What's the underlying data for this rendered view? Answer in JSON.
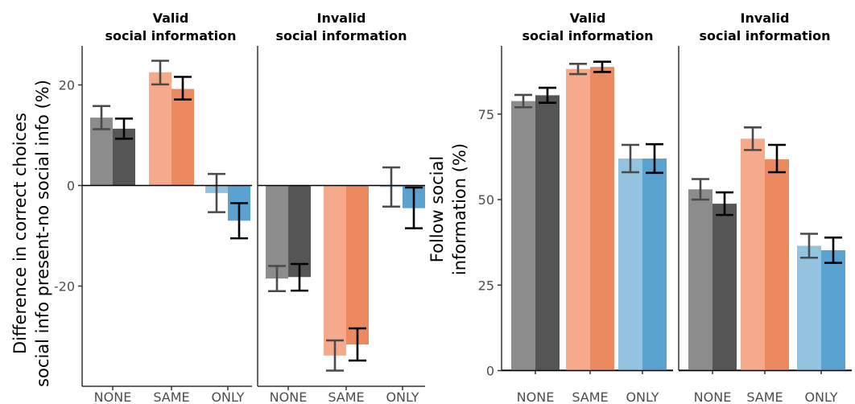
{
  "chart_data": [
    {
      "type": "bar",
      "ylabel_lines": [
        "Difference in correct choices",
        "social info present-no social info (%)"
      ],
      "ylim": [
        -40,
        28
      ],
      "yticks": [
        -20,
        0,
        20
      ],
      "ytick_labels": [
        "-20",
        "0",
        "20"
      ],
      "categories": [
        "NONE",
        "SAME",
        "ONLY"
      ],
      "grid": false,
      "legend": "none",
      "panels": [
        {
          "title_lines": [
            "Valid",
            "social information"
          ],
          "bars": [
            {
              "category": "NONE",
              "values": [
                13.5,
                11.3
              ],
              "errors": [
                [
                  11.2,
                  15.8
                ],
                [
                  9.3,
                  13.3
                ]
              ]
            },
            {
              "category": "SAME",
              "values": [
                22.5,
                19.2
              ],
              "errors": [
                [
                  20.1,
                  24.8
                ],
                [
                  17.1,
                  21.6
                ]
              ]
            },
            {
              "category": "ONLY",
              "values": [
                -1.5,
                -7.0
              ],
              "errors": [
                [
                  -5.3,
                  2.3
                ],
                [
                  -10.5,
                  -3.5
                ]
              ]
            }
          ]
        },
        {
          "title_lines": [
            "Invalid",
            "social information"
          ],
          "bars": [
            {
              "category": "NONE",
              "values": [
                -18.5,
                -18.2
              ],
              "errors": [
                [
                  -21.0,
                  -16.0
                ],
                [
                  -20.9,
                  -15.6
                ]
              ]
            },
            {
              "category": "SAME",
              "values": [
                -33.8,
                -31.6
              ],
              "errors": [
                [
                  -36.8,
                  -30.8
                ],
                [
                  -34.8,
                  -28.4
                ]
              ]
            },
            {
              "category": "ONLY",
              "values": [
                -0.3,
                -4.5
              ],
              "errors": [
                [
                  -4.2,
                  3.6
                ],
                [
                  -8.5,
                  -0.4
                ]
              ]
            }
          ]
        }
      ]
    },
    {
      "type": "bar",
      "ylabel_lines": [
        "Follow social",
        "information (%)"
      ],
      "ylim": [
        0,
        95
      ],
      "yticks": [
        0,
        25,
        50,
        75
      ],
      "ytick_labels": [
        "0",
        "25",
        "50",
        "75"
      ],
      "categories": [
        "NONE",
        "SAME",
        "ONLY"
      ],
      "grid": false,
      "legend": "none",
      "panels": [
        {
          "title_lines": [
            "Valid",
            "social information"
          ],
          "bars": [
            {
              "category": "NONE",
              "values": [
                78.8,
                80.5
              ],
              "errors": [
                [
                  77.0,
                  80.6
                ],
                [
                  78.3,
                  82.7
                ]
              ]
            },
            {
              "category": "SAME",
              "values": [
                88.2,
                88.8
              ],
              "errors": [
                [
                  86.7,
                  89.7
                ],
                [
                  87.3,
                  90.3
                ]
              ]
            },
            {
              "category": "ONLY",
              "values": [
                62.0,
                62.0
              ],
              "errors": [
                [
                  58.0,
                  66.0
                ],
                [
                  57.8,
                  66.2
                ]
              ]
            }
          ]
        },
        {
          "title_lines": [
            "Invalid",
            "social information"
          ],
          "bars": [
            {
              "category": "NONE",
              "values": [
                53.0,
                48.8
              ],
              "errors": [
                [
                  50.0,
                  56.0
                ],
                [
                  45.5,
                  52.1
                ]
              ]
            },
            {
              "category": "SAME",
              "values": [
                67.8,
                61.8
              ],
              "errors": [
                [
                  64.5,
                  71.1
                ],
                [
                  58.0,
                  66.0
                ]
              ]
            },
            {
              "category": "ONLY",
              "values": [
                36.5,
                35.2
              ],
              "errors": [
                [
                  33.0,
                  40.0
                ],
                [
                  31.5,
                  38.9
                ]
              ]
            }
          ]
        }
      ]
    }
  ],
  "colors": {
    "NONE": [
      "#8c8c8c",
      "#555555"
    ],
    "SAME": [
      "#f4aa8b",
      "#ec8a5f"
    ],
    "ONLY": [
      "#93c3de",
      "#5aa3d1"
    ],
    "error_light": "#4a4a4a",
    "error_dark": "#000000"
  }
}
